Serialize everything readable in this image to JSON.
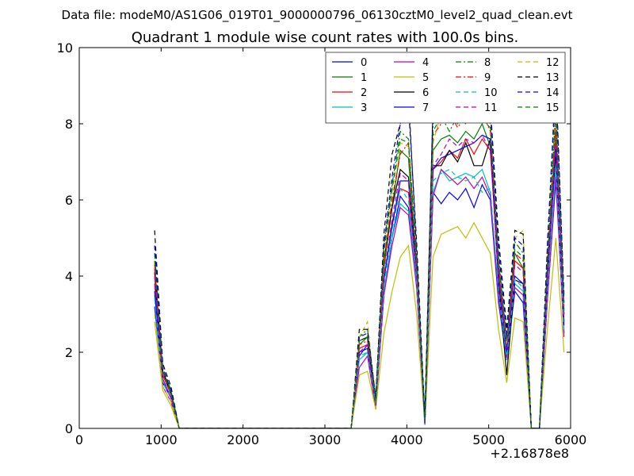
{
  "chart_data": {
    "type": "line",
    "subtitle": "Data file: modeM0/AS1G06_019T01_9000000796_06130cztM0_level2_quad_clean.evt",
    "title": "Quadrant 1 module wise count rates with 100.0s bins.",
    "xlabel": "",
    "ylabel": "",
    "x_offset_label": "+2.16878e8",
    "xlim": [
      0,
      6000
    ],
    "ylim": [
      0,
      10
    ],
    "x_ticks": [
      0,
      1000,
      2000,
      3000,
      4000,
      5000,
      6000
    ],
    "y_ticks": [
      0,
      2,
      4,
      6,
      8,
      10
    ],
    "legend_position": "top-right",
    "x": [
      920,
      1020,
      1120,
      1220,
      1320,
      1420,
      1520,
      1620,
      1720,
      1820,
      1920,
      2020,
      2120,
      2220,
      2320,
      2420,
      2520,
      2620,
      2720,
      2820,
      2920,
      3020,
      3120,
      3220,
      3320,
      3420,
      3520,
      3620,
      3720,
      3820,
      3920,
      4020,
      4120,
      4220,
      4320,
      4420,
      4520,
      4620,
      4720,
      4820,
      4920,
      5020,
      5120,
      5220,
      5320,
      5420,
      5520,
      5620,
      5720,
      5820,
      5920
    ],
    "series": [
      {
        "name": "0",
        "color": "#0000ff",
        "dash": "solid",
        "values": [
          3.2,
          1.2,
          0.8,
          0,
          0,
          0,
          0,
          0,
          0,
          0,
          0,
          0,
          0,
          0,
          0,
          0,
          0,
          0,
          0,
          0,
          0,
          0,
          0,
          0,
          0,
          1.9,
          2.2,
          0.6,
          3.5,
          5.0,
          6.1,
          5.8,
          3.8,
          0.1,
          6.2,
          5.9,
          6.2,
          6.0,
          6.3,
          5.8,
          6.4,
          6.0,
          3.3,
          1.8,
          3.6,
          3.3,
          0,
          0,
          3.5,
          6.5,
          2.5
        ]
      },
      {
        "name": "1",
        "color": "#008000",
        "dash": "solid",
        "values": [
          4.0,
          1.5,
          1.0,
          0,
          0,
          0,
          0,
          0,
          0,
          0,
          0,
          0,
          0,
          0,
          0,
          0,
          0,
          0,
          0,
          0,
          0,
          0,
          0,
          0,
          0,
          2.2,
          2.4,
          0.7,
          4.2,
          5.8,
          7.3,
          7.1,
          4.2,
          0.2,
          7.3,
          7.6,
          7.7,
          7.5,
          7.8,
          7.6,
          8.0,
          7.4,
          4.2,
          2.2,
          4.6,
          4.2,
          0,
          0,
          4.2,
          7.8,
          3.0
        ]
      },
      {
        "name": "2",
        "color": "#ff0000",
        "dash": "solid",
        "values": [
          4.3,
          1.4,
          0.9,
          0,
          0,
          0,
          0,
          0,
          0,
          0,
          0,
          0,
          0,
          0,
          0,
          0,
          0,
          0,
          0,
          0,
          0,
          0,
          0,
          0,
          0,
          2.1,
          2.2,
          0.7,
          3.9,
          5.4,
          6.3,
          6.2,
          4.0,
          0.2,
          6.8,
          7.0,
          7.3,
          7.1,
          7.6,
          7.2,
          7.6,
          7.3,
          4.0,
          2.1,
          4.4,
          4.2,
          0,
          0,
          4.0,
          7.5,
          2.8
        ]
      },
      {
        "name": "3",
        "color": "#00bfbf",
        "dash": "solid",
        "values": [
          3.5,
          1.3,
          0.8,
          0,
          0,
          0,
          0,
          0,
          0,
          0,
          0,
          0,
          0,
          0,
          0,
          0,
          0,
          0,
          0,
          0,
          0,
          0,
          0,
          0,
          0,
          1.8,
          2.0,
          0.6,
          3.6,
          5.0,
          5.9,
          5.7,
          3.8,
          0.1,
          6.2,
          6.8,
          6.5,
          6.6,
          6.7,
          6.6,
          6.8,
          6.2,
          3.5,
          1.9,
          3.8,
          3.6,
          0,
          0,
          3.6,
          6.8,
          2.5
        ]
      },
      {
        "name": "4",
        "color": "#bf00bf",
        "dash": "solid",
        "values": [
          3.8,
          1.1,
          0.7,
          0,
          0,
          0,
          0,
          0,
          0,
          0,
          0,
          0,
          0,
          0,
          0,
          0,
          0,
          0,
          0,
          0,
          0,
          0,
          0,
          0,
          0,
          1.6,
          1.9,
          0.5,
          3.5,
          4.8,
          5.8,
          5.6,
          3.7,
          0.1,
          6.1,
          6.8,
          6.6,
          6.4,
          6.6,
          6.3,
          6.6,
          6.1,
          3.4,
          1.8,
          3.7,
          3.5,
          0,
          0,
          3.5,
          6.6,
          2.4
        ]
      },
      {
        "name": "5",
        "color": "#bfbf00",
        "dash": "solid",
        "values": [
          2.8,
          1.0,
          0.6,
          0,
          0,
          0,
          0,
          0,
          0,
          0,
          0,
          0,
          0,
          0,
          0,
          0,
          0,
          0,
          0,
          0,
          0,
          0,
          0,
          0,
          0,
          1.4,
          1.5,
          0.5,
          2.5,
          3.6,
          4.5,
          4.8,
          3.0,
          0.1,
          4.5,
          5.1,
          5.2,
          5.3,
          5.0,
          5.4,
          5.0,
          4.6,
          2.6,
          1.2,
          2.9,
          2.8,
          0,
          0,
          2.7,
          5.0,
          2.0
        ]
      },
      {
        "name": "6",
        "color": "#000000",
        "dash": "solid",
        "values": [
          4.1,
          1.5,
          0.9,
          0,
          0,
          0,
          0,
          0,
          0,
          0,
          0,
          0,
          0,
          0,
          0,
          0,
          0,
          0,
          0,
          0,
          0,
          0,
          0,
          0,
          0,
          2.3,
          2.4,
          0.7,
          4.4,
          5.8,
          6.8,
          6.6,
          4.2,
          0.2,
          6.9,
          6.9,
          7.3,
          7.0,
          7.5,
          6.9,
          6.9,
          7.6,
          3.8,
          1.4,
          3.9,
          3.8,
          0,
          0,
          4.2,
          7.2,
          2.8
        ]
      },
      {
        "name": "7",
        "color": "#0000ff",
        "dash": "solid",
        "values": [
          3.6,
          1.3,
          0.8,
          0,
          0,
          0,
          0,
          0,
          0,
          0,
          0,
          0,
          0,
          0,
          0,
          0,
          0,
          0,
          0,
          0,
          0,
          0,
          0,
          0,
          0,
          2.0,
          2.1,
          0.6,
          3.9,
          5.3,
          6.5,
          6.5,
          4.0,
          0.1,
          6.8,
          7.1,
          7.2,
          7.3,
          7.4,
          7.5,
          7.7,
          7.6,
          3.9,
          2.0,
          4.0,
          3.8,
          0,
          0,
          4.0,
          7.4,
          2.7
        ]
      },
      {
        "name": "8",
        "color": "#008000",
        "dash": "dashdot",
        "values": [
          4.6,
          1.6,
          1.0,
          0,
          0,
          0,
          0,
          0,
          0,
          0,
          0,
          0,
          0,
          0,
          0,
          0,
          0,
          0,
          0,
          0,
          0,
          0,
          0,
          0,
          0,
          2.4,
          2.6,
          0.8,
          4.8,
          6.4,
          7.8,
          7.6,
          4.5,
          0.2,
          8.0,
          8.2,
          7.8,
          8.2,
          8.0,
          8.4,
          8.1,
          7.9,
          4.5,
          2.3,
          4.9,
          4.6,
          0,
          0,
          4.6,
          8.4,
          3.2
        ]
      },
      {
        "name": "9",
        "color": "#ff0000",
        "dash": "dashdot",
        "values": [
          4.2,
          1.4,
          0.9,
          0,
          0,
          0,
          0,
          0,
          0,
          0,
          0,
          0,
          0,
          0,
          0,
          0,
          0,
          0,
          0,
          0,
          0,
          0,
          0,
          0,
          0,
          2.2,
          2.3,
          0.7,
          4.3,
          6.0,
          7.2,
          7.5,
          4.3,
          0.2,
          7.7,
          8.0,
          8.3,
          7.9,
          8.2,
          8.1,
          8.3,
          7.8,
          4.3,
          2.2,
          4.6,
          4.4,
          0,
          0,
          4.4,
          8.0,
          3.0
        ]
      },
      {
        "name": "10",
        "color": "#00bfbf",
        "dash": "dashed",
        "values": [
          3.4,
          1.2,
          0.8,
          0,
          0,
          0,
          0,
          0,
          0,
          0,
          0,
          0,
          0,
          0,
          0,
          0,
          0,
          0,
          0,
          0,
          0,
          0,
          0,
          0,
          0,
          1.9,
          2.0,
          0.6,
          3.7,
          5.2,
          6.3,
          6.0,
          3.9,
          0.1,
          6.5,
          6.7,
          6.8,
          6.6,
          6.5,
          6.6,
          6.2,
          6.3,
          3.6,
          1.8,
          3.9,
          3.7,
          0,
          0,
          3.7,
          6.9,
          2.6
        ]
      },
      {
        "name": "11",
        "color": "#bf00bf",
        "dash": "dashed",
        "values": [
          4.0,
          1.3,
          0.8,
          0,
          0,
          0,
          0,
          0,
          0,
          0,
          0,
          0,
          0,
          0,
          0,
          0,
          0,
          0,
          0,
          0,
          0,
          0,
          0,
          0,
          0,
          2.0,
          2.2,
          0.6,
          4.0,
          5.5,
          6.7,
          6.5,
          4.1,
          0.1,
          6.9,
          7.2,
          7.6,
          7.4,
          7.6,
          7.5,
          7.7,
          7.3,
          4.0,
          2.1,
          4.3,
          4.1,
          0,
          0,
          4.0,
          7.6,
          2.9
        ]
      },
      {
        "name": "12",
        "color": "#bfbf00",
        "dash": "dashed",
        "values": [
          3.0,
          1.1,
          0.7,
          0,
          0,
          0,
          0,
          0,
          0,
          0,
          0,
          0,
          0,
          0,
          0,
          0,
          0,
          0,
          0,
          0,
          0,
          0,
          0,
          0,
          0,
          2.4,
          2.8,
          0.7,
          4.5,
          6.2,
          7.5,
          7.4,
          4.4,
          0.2,
          7.5,
          8.3,
          8.7,
          8.5,
          8.8,
          8.6,
          8.5,
          8.3,
          4.6,
          2.2,
          5.0,
          5.2,
          0,
          0,
          4.6,
          8.6,
          3.2
        ]
      },
      {
        "name": "13",
        "color": "#000000",
        "dash": "dashed",
        "values": [
          5.2,
          1.7,
          1.1,
          0,
          0,
          0,
          0,
          0,
          0,
          0,
          0,
          0,
          0,
          0,
          0,
          0,
          0,
          0,
          0,
          0,
          0,
          0,
          0,
          0,
          0,
          2.6,
          2.6,
          0.8,
          5.1,
          7.2,
          8.0,
          8.5,
          4.9,
          0.3,
          8.5,
          8.8,
          9.2,
          9.0,
          9.4,
          9.2,
          9.0,
          8.5,
          5.0,
          2.6,
          5.2,
          5.1,
          0,
          0,
          5.0,
          9.0,
          3.5
        ]
      },
      {
        "name": "14",
        "color": "#0000ff",
        "dash": "dashed",
        "values": [
          4.8,
          1.6,
          1.0,
          0,
          0,
          0,
          0,
          0,
          0,
          0,
          0,
          0,
          0,
          0,
          0,
          0,
          0,
          0,
          0,
          0,
          0,
          0,
          0,
          0,
          0,
          2.4,
          2.5,
          0.8,
          4.8,
          6.6,
          8.0,
          8.8,
          4.6,
          0.2,
          8.5,
          8.6,
          8.9,
          8.7,
          8.9,
          8.6,
          8.8,
          8.4,
          4.7,
          2.4,
          5.0,
          4.8,
          0,
          0,
          4.9,
          9.3,
          3.3
        ]
      },
      {
        "name": "15",
        "color": "#008000",
        "dash": "dashed",
        "values": [
          4.4,
          1.5,
          0.9,
          0,
          0,
          0,
          0,
          0,
          0,
          0,
          0,
          0,
          0,
          0,
          0,
          0,
          0,
          0,
          0,
          0,
          0,
          0,
          0,
          0,
          0,
          2.3,
          2.4,
          0.7,
          4.6,
          6.3,
          7.6,
          7.5,
          4.4,
          0.2,
          7.8,
          8.2,
          8.4,
          8.0,
          8.4,
          8.2,
          8.4,
          8.0,
          4.4,
          2.3,
          4.7,
          4.5,
          0,
          0,
          4.5,
          8.3,
          3.1
        ]
      }
    ]
  }
}
